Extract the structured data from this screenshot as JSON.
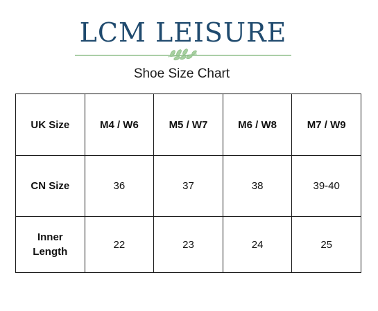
{
  "brand": {
    "name": "LCM LEISURE",
    "colors": {
      "name": "#1f4a6e",
      "divider": "#8fbf8a"
    },
    "ornament_icon": "leaf-sprig-icon"
  },
  "subtitle": "Shoe Size Chart",
  "table": {
    "rows": [
      {
        "label": "UK Size",
        "cells": [
          "M4 / W6",
          "M5 / W7",
          "M6 / W8",
          "M7 / W9"
        ]
      },
      {
        "label": "CN Size",
        "cells": [
          "36",
          "37",
          "38",
          "39-40"
        ]
      },
      {
        "label": "Inner\nLength",
        "cells": [
          "22",
          "23",
          "24",
          "25"
        ]
      }
    ]
  }
}
